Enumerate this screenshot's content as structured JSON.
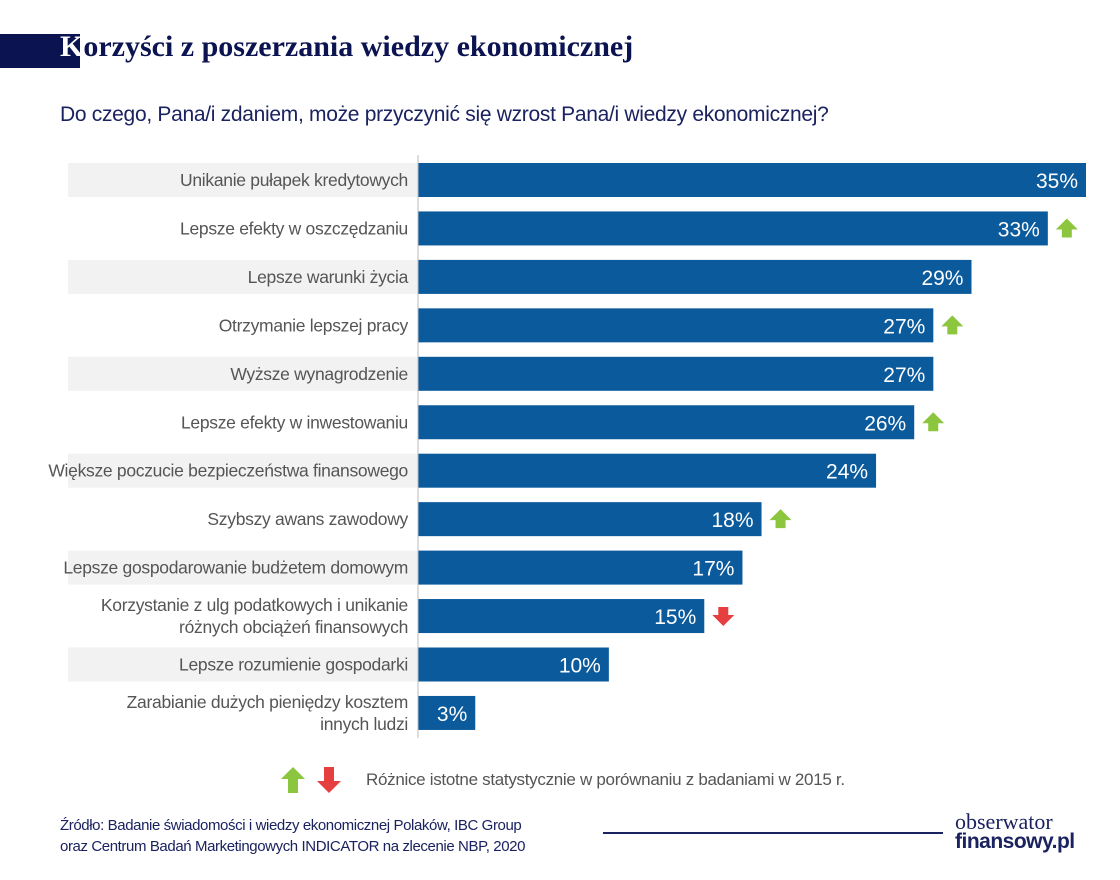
{
  "header": {
    "title_first_letter": "K",
    "title_rest": "orzyści z poszerzania wiedzy ekonomicznej",
    "subtitle": "Do czego, Pana/i zdaniem, może przyczynić się wzrost Pana/i wiedzy ekonomicznej?"
  },
  "chart_data": {
    "type": "bar",
    "orientation": "horizontal",
    "categories": [
      "Unikanie pułapek kredytowych",
      "Lepsze efekty w oszczędzaniu",
      "Lepsze warunki życia",
      "Otrzymanie lepszej pracy",
      "Wyższe wynagrodzenie",
      "Lepsze efekty w inwestowaniu",
      "Większe poczucie bezpieczeństwa finansowego",
      "Szybszy awans zawodowy",
      "Lepsze gospodarowanie budżetem domowym",
      "Korzystanie z ulg podatkowych i unikanie|różnych obciążeń finansowych",
      "Lepsze rozumienie gospodarki",
      "Zarabianie dużych pieniędzy kosztem|innych ludzi"
    ],
    "values": [
      35,
      33,
      29,
      27,
      27,
      26,
      24,
      18,
      17,
      15,
      10,
      3
    ],
    "data_labels": [
      "35%",
      "33%",
      "29%",
      "27%",
      "27%",
      "26%",
      "24%",
      "18%",
      "17%",
      "15%",
      "10%",
      "3%"
    ],
    "change_vs_2015": [
      "none",
      "up",
      "none",
      "up",
      "none",
      "up",
      "none",
      "up",
      "none",
      "down",
      "none",
      "none"
    ],
    "xlim": [
      0,
      35
    ],
    "unit": "%",
    "colors": {
      "bar": "#0b5a9c",
      "up": "#8cc63f",
      "down": "#e5403f",
      "label_band": "#f2f2f2"
    }
  },
  "legend": {
    "text": "Różnice istotne statystycznie w porównaniu z badaniami w 2015 r."
  },
  "footer": {
    "source_line1": "Źródło: Badanie świadomości i wiedzy ekonomicznej Polaków, IBC Group",
    "source_line2": "oraz Centrum Badań Marketingowych INDICATOR na zlecenie NBP, 2020",
    "logo_line1": "obserwator",
    "logo_line2": "finansowy.pl"
  }
}
